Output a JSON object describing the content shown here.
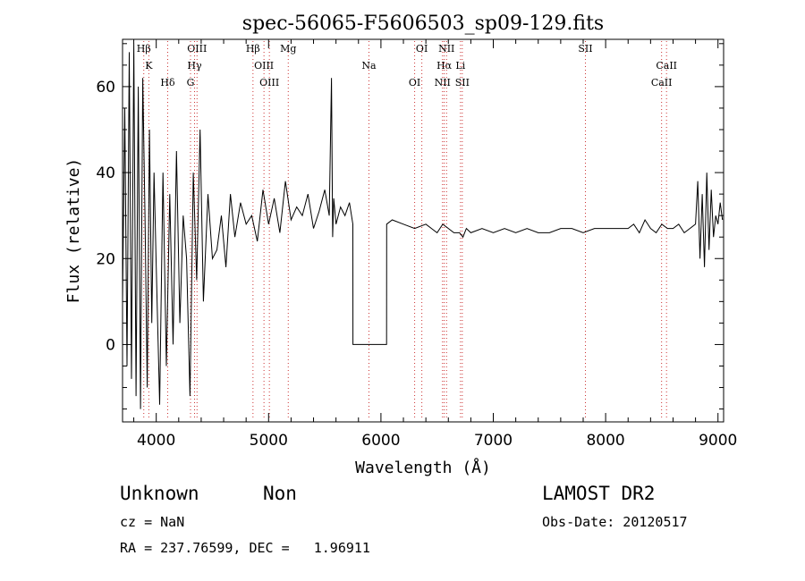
{
  "chart_data": {
    "type": "line",
    "title": "spec-56065-F5606503_sp09-129.fits",
    "xlabel": "Wavelength (Å)",
    "ylabel": "Flux (relative)",
    "xlim": [
      3700,
      9050
    ],
    "ylim": [
      -18,
      71
    ],
    "xticks": [
      4000,
      5000,
      6000,
      7000,
      8000,
      9000
    ],
    "yticks": [
      0,
      20,
      40,
      60
    ],
    "grid": false,
    "series": [
      {
        "name": "flux",
        "x": [
          3700,
          3720,
          3740,
          3760,
          3780,
          3800,
          3820,
          3840,
          3860,
          3880,
          3900,
          3920,
          3940,
          3960,
          3980,
          4000,
          4030,
          4060,
          4090,
          4120,
          4150,
          4180,
          4210,
          4240,
          4270,
          4300,
          4330,
          4360,
          4390,
          4420,
          4460,
          4500,
          4540,
          4580,
          4620,
          4660,
          4700,
          4750,
          4800,
          4850,
          4900,
          4950,
          5000,
          5050,
          5100,
          5150,
          5200,
          5250,
          5300,
          5350,
          5400,
          5450,
          5500,
          5540,
          5560,
          5570,
          5580,
          5600,
          5640,
          5680,
          5720,
          5750,
          5751,
          6050,
          6051,
          6100,
          6200,
          6300,
          6400,
          6450,
          6500,
          6550,
          6600,
          6650,
          6700,
          6730,
          6760,
          6800,
          6900,
          7000,
          7100,
          7200,
          7300,
          7400,
          7500,
          7600,
          7700,
          7800,
          7900,
          8000,
          8100,
          8200,
          8250,
          8300,
          8350,
          8400,
          8450,
          8500,
          8550,
          8600,
          8650,
          8700,
          8750,
          8800,
          8820,
          8840,
          8860,
          8880,
          8900,
          8920,
          8940,
          8960,
          8980,
          9000,
          9020,
          9040
        ],
        "values": [
          10,
          55,
          -5,
          68,
          -8,
          70,
          -12,
          60,
          -15,
          62,
          30,
          -10,
          50,
          5,
          40,
          18,
          -14,
          40,
          -5,
          35,
          0,
          45,
          5,
          30,
          20,
          -12,
          40,
          15,
          50,
          10,
          35,
          20,
          22,
          30,
          18,
          35,
          25,
          33,
          28,
          30,
          24,
          36,
          28,
          34,
          26,
          38,
          29,
          32,
          30,
          35,
          27,
          31,
          36,
          30,
          62,
          25,
          34,
          28,
          32,
          30,
          33,
          28,
          0,
          0,
          28,
          29,
          28,
          27,
          28,
          27,
          26,
          28,
          27,
          26,
          26,
          25,
          27,
          26,
          27,
          26,
          27,
          26,
          27,
          26,
          26,
          27,
          27,
          26,
          27,
          27,
          27,
          27,
          28,
          26,
          29,
          27,
          26,
          28,
          27,
          27,
          28,
          26,
          27,
          28,
          38,
          20,
          35,
          18,
          40,
          22,
          36,
          25,
          30,
          28,
          33,
          29
        ]
      }
    ],
    "lines": [
      {
        "label": "Hβ",
        "x": 3889
      },
      {
        "label": "K",
        "x": 3934
      },
      {
        "label": "Hδ",
        "x": 4102
      },
      {
        "label": "OIII",
        "x": 4363
      },
      {
        "label": "Hγ",
        "x": 4341
      },
      {
        "label": "G",
        "x": 4305
      },
      {
        "label": "Hβ",
        "x": 4861
      },
      {
        "label": "OIII",
        "x": 4959
      },
      {
        "label": "OIII",
        "x": 5007
      },
      {
        "label": "Mg",
        "x": 5175
      },
      {
        "label": "Na",
        "x": 5893
      },
      {
        "label": "OI",
        "x": 6300
      },
      {
        "label": "OI",
        "x": 6364
      },
      {
        "label": "Hα",
        "x": 6563
      },
      {
        "label": "NII",
        "x": 6548
      },
      {
        "label": "NII",
        "x": 6584
      },
      {
        "label": "Li",
        "x": 6708
      },
      {
        "label": "SII",
        "x": 6724
      },
      {
        "label": "SII",
        "x": 7820
      },
      {
        "label": "CaII",
        "x": 8542
      },
      {
        "label": "CaII",
        "x": 8498
      }
    ]
  },
  "info": {
    "class": "Unknown",
    "subclass": "Non",
    "survey": "LAMOST DR2",
    "cz": "cz = NaN",
    "obs_date": "Obs-Date: 20120517",
    "radec": "RA = 237.76599, DEC =   1.96911"
  },
  "colors": {
    "axis": "#000000",
    "line": "#000000",
    "marker": "#cc3333"
  }
}
